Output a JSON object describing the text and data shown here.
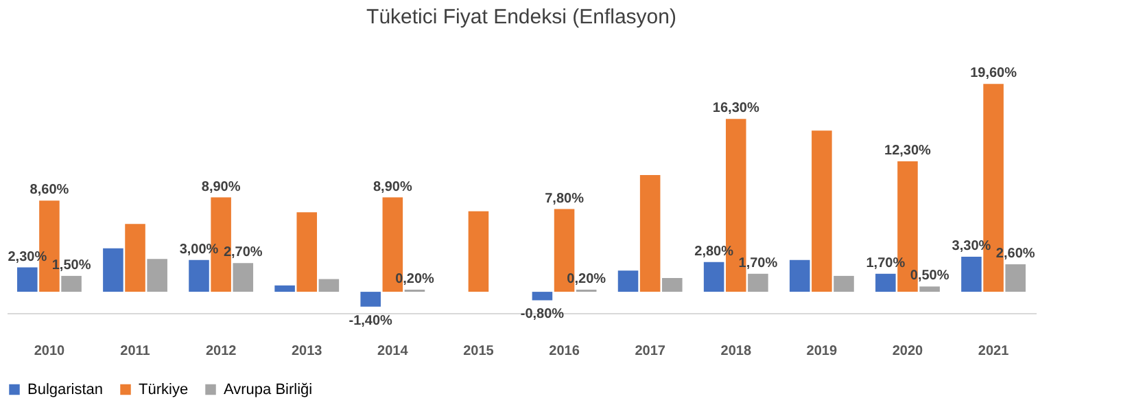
{
  "chart_data": {
    "type": "bar",
    "title": "Tüketici Fiyat Endeksi (Enflasyon)",
    "categories": [
      "2010",
      "2011",
      "2012",
      "2013",
      "2014",
      "2015",
      "2016",
      "2017",
      "2018",
      "2019",
      "2020",
      "2021"
    ],
    "series": [
      {
        "name": "Bulgaristan",
        "color": "#4472c4",
        "values": [
          2.3,
          4.1,
          3.0,
          0.6,
          -1.4,
          0,
          -0.8,
          2.0,
          2.8,
          3.0,
          1.7,
          3.3
        ],
        "value_labels": [
          "2,30%",
          null,
          "3,00%",
          null,
          "-1,40%",
          null,
          "-0,80%",
          null,
          "2,80%",
          null,
          "1,70%",
          "3,30%"
        ]
      },
      {
        "name": "Türkiye",
        "color": "#ed7d31",
        "values": [
          8.6,
          6.4,
          8.9,
          7.5,
          8.9,
          7.6,
          7.8,
          11.0,
          16.3,
          15.2,
          12.3,
          19.6
        ],
        "value_labels": [
          "8,60%",
          null,
          "8,90%",
          null,
          "8,90%",
          null,
          "7,80%",
          null,
          "16,30%",
          null,
          "12,30%",
          "19,60%"
        ]
      },
      {
        "name": "Avrupa Birliği",
        "color": "#a5a5a5",
        "values": [
          1.5,
          3.1,
          2.7,
          1.2,
          0.2,
          0,
          0.2,
          1.3,
          1.7,
          1.5,
          0.5,
          2.6
        ],
        "value_labels": [
          "1,50%",
          null,
          "2,70%",
          null,
          "0,20%",
          null,
          "0,20%",
          null,
          "1,70%",
          null,
          "0,50%",
          "2,60%"
        ]
      }
    ],
    "legend": "bottom",
    "grid": false
  }
}
